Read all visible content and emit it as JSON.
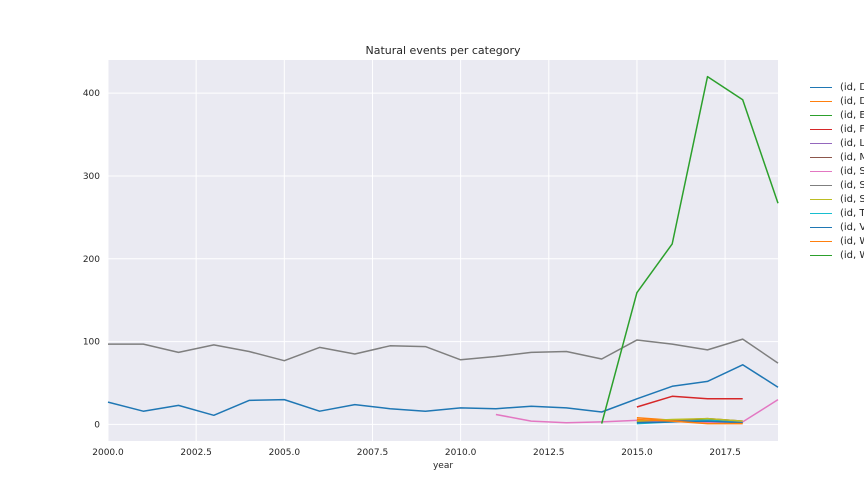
{
  "chart_data": {
    "type": "line",
    "title": "Natural events per category",
    "xlabel": "year",
    "ylabel": "",
    "xlim": [
      2000,
      2019
    ],
    "ylim": [
      -20,
      440
    ],
    "xticks": [
      "2000.0",
      "2002.5",
      "2005.0",
      "2007.5",
      "2010.0",
      "2012.5",
      "2015.0",
      "2017.5"
    ],
    "xtick_values": [
      2000,
      2002.5,
      2005,
      2007.5,
      2010,
      2012.5,
      2015,
      2017.5
    ],
    "yticks": [
      "0",
      "100",
      "200",
      "300",
      "400"
    ],
    "ytick_values": [
      0,
      100,
      200,
      300,
      400
    ],
    "grid": true,
    "legend_placement": "outside-right",
    "series": [
      {
        "name": "(id, D",
        "color": "#1f77b4",
        "x": [
          2000,
          2001,
          2002,
          2003,
          2004,
          2005,
          2006,
          2007,
          2008,
          2009,
          2010,
          2011,
          2012,
          2013,
          2014,
          2015,
          2016,
          2017,
          2018,
          2019
        ],
        "y": [
          27,
          16,
          23,
          11,
          29,
          30,
          16,
          24,
          19,
          16,
          20,
          19,
          22,
          20,
          15,
          31,
          46,
          52,
          72,
          45
        ]
      },
      {
        "name": "(id, D",
        "color": "#ff7f0e",
        "x": [
          2015,
          2016,
          2017,
          2018
        ],
        "y": [
          8,
          5,
          3,
          2
        ]
      },
      {
        "name": "(id, E",
        "color": "#2ca02c",
        "x": [
          2015,
          2016,
          2017,
          2018
        ],
        "y": [
          2,
          4,
          6,
          3
        ]
      },
      {
        "name": "(id, F",
        "color": "#d62728",
        "x": [
          2015,
          2016,
          2017,
          2018
        ],
        "y": [
          21,
          34,
          31,
          31
        ]
      },
      {
        "name": "(id, L",
        "color": "#9467bd",
        "x": [
          2015,
          2016,
          2017,
          2018
        ],
        "y": [
          3,
          5,
          4,
          3
        ]
      },
      {
        "name": "(id, M",
        "color": "#8c564b",
        "x": [
          2015,
          2016,
          2017,
          2018
        ],
        "y": [
          4,
          5,
          7,
          4
        ]
      },
      {
        "name": "(id, S",
        "color": "#e377c2",
        "x": [
          2011,
          2012,
          2013,
          2014,
          2015,
          2016,
          2017,
          2018,
          2019
        ],
        "y": [
          12,
          4,
          2,
          3,
          5,
          4,
          2,
          3,
          30
        ]
      },
      {
        "name": "(id, S",
        "color": "#7f7f7f",
        "x": [
          2000,
          2001,
          2002,
          2003,
          2004,
          2005,
          2006,
          2007,
          2008,
          2009,
          2010,
          2011,
          2012,
          2013,
          2014,
          2015,
          2016,
          2017,
          2018,
          2019
        ],
        "y": [
          97,
          97,
          87,
          96,
          88,
          77,
          93,
          85,
          95,
          94,
          78,
          82,
          87,
          88,
          79,
          102,
          97,
          90,
          103,
          74
        ]
      },
      {
        "name": "(id, S",
        "color": "#bcbd22",
        "x": [
          2015,
          2016,
          2017,
          2018
        ],
        "y": [
          4,
          6,
          7,
          4
        ]
      },
      {
        "name": "(id, T",
        "color": "#17becf",
        "x": [
          2015,
          2016,
          2017,
          2018
        ],
        "y": [
          1,
          3,
          5,
          2
        ]
      },
      {
        "name": "(id, V",
        "color": "#1f77b4",
        "x": [
          2015,
          2016,
          2017,
          2018
        ],
        "y": [
          2,
          3,
          4,
          2
        ]
      },
      {
        "name": "(id, W",
        "color": "#ff7f0e",
        "x": [
          2015,
          2016,
          2017,
          2018
        ],
        "y": [
          6,
          4,
          1,
          1
        ]
      },
      {
        "name": "(id, W",
        "color": "#2ca02c",
        "x": [
          2014,
          2015,
          2016,
          2017,
          2018,
          2019
        ],
        "y": [
          1,
          159,
          218,
          420,
          392,
          267
        ]
      }
    ]
  }
}
